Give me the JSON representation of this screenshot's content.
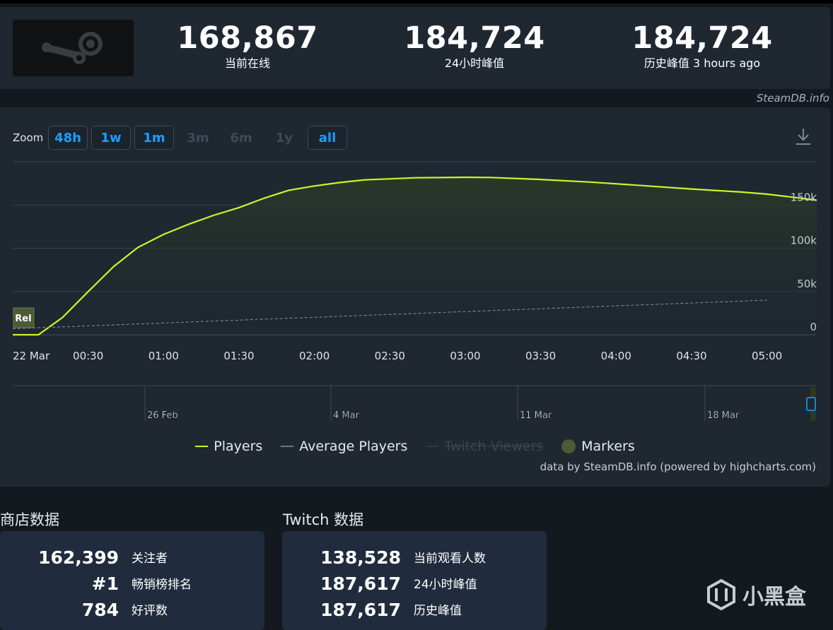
{
  "header": {
    "logo_icon": "steam-logo-icon",
    "current": {
      "value": "168,867",
      "label": "当前在线"
    },
    "peak24": {
      "value": "184,724",
      "label": "24小时峰值"
    },
    "alltime": {
      "value": "184,724",
      "label": "历史峰值 3 hours ago"
    },
    "credit": "SteamDB.info"
  },
  "zoom": {
    "label": "Zoom",
    "buttons": [
      {
        "label": "48h",
        "state": "active"
      },
      {
        "label": "1w",
        "state": "active"
      },
      {
        "label": "1m",
        "state": "active"
      },
      {
        "label": "3m",
        "state": "disabled"
      },
      {
        "label": "6m",
        "state": "disabled"
      },
      {
        "label": "1y",
        "state": "disabled"
      },
      {
        "label": "all",
        "state": "active"
      }
    ],
    "download_icon": "download-icon"
  },
  "chart_data": {
    "type": "line",
    "x_unit": "hours after 22 Mar 00:00",
    "x_ticks": [
      {
        "x": 0,
        "label": "22 Mar"
      },
      {
        "x": 0.5,
        "label": "00:30"
      },
      {
        "x": 1.0,
        "label": "01:00"
      },
      {
        "x": 1.5,
        "label": "01:30"
      },
      {
        "x": 2.0,
        "label": "02:00"
      },
      {
        "x": 2.5,
        "label": "02:30"
      },
      {
        "x": 3.0,
        "label": "03:00"
      },
      {
        "x": 3.5,
        "label": "03:30"
      },
      {
        "x": 4.0,
        "label": "04:00"
      },
      {
        "x": 4.5,
        "label": "04:30"
      },
      {
        "x": 5.0,
        "label": "05:00"
      }
    ],
    "xlim": [
      0,
      5.33
    ],
    "y_ticks": [
      {
        "y": 0,
        "label": "0"
      },
      {
        "y": 50000,
        "label": "50k"
      },
      {
        "y": 100000,
        "label": "100k"
      },
      {
        "y": 150000,
        "label": "150k"
      }
    ],
    "ylim": [
      0,
      200000
    ],
    "grid": true,
    "series": [
      {
        "name": "Players",
        "color": "#c6f72a",
        "points": [
          [
            0.0,
            0
          ],
          [
            0.17,
            0
          ],
          [
            0.33,
            20000
          ],
          [
            0.5,
            50000
          ],
          [
            0.67,
            79000
          ],
          [
            0.83,
            101000
          ],
          [
            1.0,
            116000
          ],
          [
            1.17,
            128000
          ],
          [
            1.33,
            138000
          ],
          [
            1.5,
            147000
          ],
          [
            1.67,
            158000
          ],
          [
            1.83,
            167000
          ],
          [
            2.0,
            172000
          ],
          [
            2.17,
            176000
          ],
          [
            2.33,
            179000
          ],
          [
            2.67,
            181500
          ],
          [
            3.0,
            182000
          ],
          [
            3.17,
            181800
          ],
          [
            3.5,
            179500
          ],
          [
            3.83,
            176500
          ],
          [
            4.17,
            172500
          ],
          [
            4.5,
            168500
          ],
          [
            4.83,
            165000
          ],
          [
            5.0,
            162500
          ],
          [
            5.17,
            159000
          ],
          [
            5.33,
            155500
          ]
        ]
      },
      {
        "name": "Average Players",
        "color": "#8a939c",
        "points": [
          [
            0.0,
            7000
          ],
          [
            5.0,
            40000
          ]
        ]
      }
    ],
    "marker": {
      "x": 0.07,
      "label": "Rel"
    },
    "navigator": {
      "labels": [
        "26 Feb",
        "4 Mar",
        "11 Mar",
        "18 Mar"
      ]
    },
    "legend": [
      {
        "name": "Players",
        "color": "#c6f72a",
        "enabled": true
      },
      {
        "name": "Average Players",
        "color": "#6e7780",
        "enabled": true
      },
      {
        "name": "Twitch Viewers",
        "color": "#2a3846",
        "enabled": false
      },
      {
        "name": "Markers",
        "color": "#4d5a36",
        "enabled": true
      }
    ],
    "credit": "data by SteamDB.info (powered by highcharts.com)"
  },
  "store": {
    "title": "商店数据",
    "rows": [
      {
        "value": "162,399",
        "label": "关注者"
      },
      {
        "value": "#1",
        "label": "畅销榜排名"
      },
      {
        "value": "784",
        "label": "好评数"
      }
    ]
  },
  "twitch": {
    "title": "Twitch 数据",
    "rows": [
      {
        "value": "138,528",
        "label": "当前观看人数"
      },
      {
        "value": "187,617",
        "label": "24小时峰值"
      },
      {
        "value": "187,617",
        "label": "历史峰值"
      }
    ]
  },
  "watermark": {
    "text": "小黑盒",
    "icon": "heybox-logo-icon"
  }
}
